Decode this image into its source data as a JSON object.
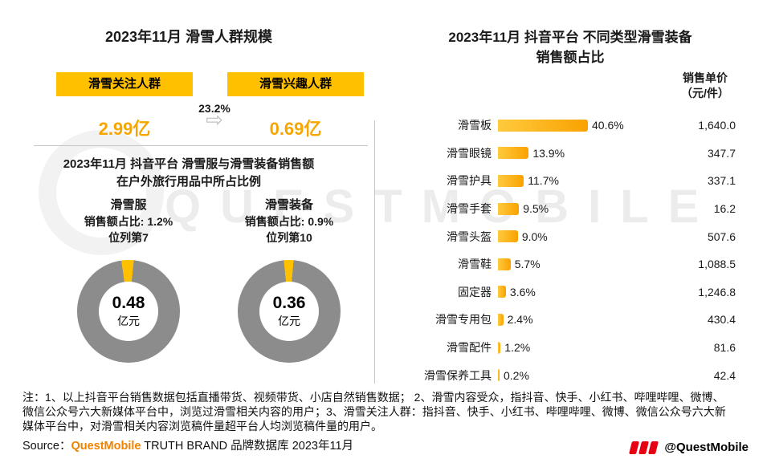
{
  "ui": {
    "arrow_glyph": "⇨",
    "left_bottom_title_lines": [
      "2023年11月 抖音平台 滑雪服与滑雪装备销售额",
      "在户外旅行用品中所占比例"
    ],
    "right_title_lines": [
      "2023年11月 抖音平台 不同类型滑雪装备",
      "销售额占比"
    ],
    "price_header_lines": [
      "销售单价",
      "（元/件）"
    ]
  },
  "chart_data": [
    {
      "type": "table",
      "title": "2023年11月 滑雪人群规模",
      "categories": [
        "滑雪关注人群",
        "滑雪兴趣人群"
      ],
      "values": [
        2.99,
        0.69
      ],
      "values_text": [
        "2.99亿",
        "0.69亿"
      ],
      "unit": "亿",
      "conversion_rate": "23.2%"
    },
    {
      "type": "pie",
      "title": "2023年11月 抖音平台 滑雪服与滑雪装备销售额在户外旅行用品中所占比例",
      "donuts": [
        {
          "name": "滑雪服",
          "share_pct": 1.2,
          "share_label": "销售额占比: 1.2%",
          "rank_label": "位列第7",
          "total": "0.48",
          "unit": "亿元"
        },
        {
          "name": "滑雪装备",
          "share_pct": 0.9,
          "share_label": "销售额占比: 0.9%",
          "rank_label": "位列第10",
          "total": "0.36",
          "unit": "亿元"
        }
      ],
      "slice_color": "#FFC000",
      "rest_color": "#8C8C8C"
    },
    {
      "type": "bar",
      "orientation": "horizontal",
      "title": "2023年11月 抖音平台 不同类型滑雪装备销售额占比",
      "categories": [
        "滑雪板",
        "滑雪眼镜",
        "滑雪护具",
        "滑雪手套",
        "滑雪头盔",
        "滑雪鞋",
        "固定器",
        "滑雪专用包",
        "滑雪配件",
        "滑雪保养工具"
      ],
      "series": [
        {
          "name": "销售额占比",
          "values": [
            40.6,
            13.9,
            11.7,
            9.5,
            9.0,
            5.7,
            3.6,
            2.4,
            1.2,
            0.2
          ],
          "labels": [
            "40.6%",
            "13.9%",
            "11.7%",
            "9.5%",
            "9.0%",
            "5.7%",
            "3.6%",
            "2.4%",
            "1.2%",
            "0.2%"
          ]
        },
        {
          "name": "销售单价（元/件）",
          "values": [
            1640.0,
            347.7,
            337.1,
            16.2,
            507.6,
            1088.5,
            1246.8,
            430.4,
            81.6,
            42.4
          ],
          "labels": [
            "1,640.0",
            "347.7",
            "337.1",
            "16.2",
            "507.6",
            "1,088.5",
            "1,246.8",
            "430.4",
            "81.6",
            "42.4"
          ]
        }
      ],
      "xlim": [
        0,
        45
      ],
      "bar_color": "#FFC000",
      "grid": false,
      "legend": "none"
    }
  ],
  "notes": {
    "text": "注：1、以上抖音平台销售数据包括直播带货、视频带货、小店自然销售数据； 2、滑雪内容受众，指抖音、快手、小红书、哔哩哔哩、微博、微信公众号六大新媒体平台中，浏览过滑雪相关内容的用户；3、滑雪关注人群：指抖音、快手、小红书、哔哩哔哩、微博、微信公众号六大新媒体平台中，对滑雪相关内容浏览稿件量超平台人均浏览稿件量的用户。",
    "source_prefix": "Source：",
    "source_brand": "QuestMobile",
    "source_suffix": " TRUTH BRAND 品牌数据库 2023年11月"
  },
  "watermark": {
    "text": "QUESTMOBILE",
    "handle": "@QuestMobile"
  },
  "colors": {
    "accent_yellow": "#FFC000",
    "accent_orange": "#F7A600",
    "donut_gray": "#8C8C8C",
    "brand_red": "#E60012",
    "source_brand_orange": "#F08300"
  }
}
